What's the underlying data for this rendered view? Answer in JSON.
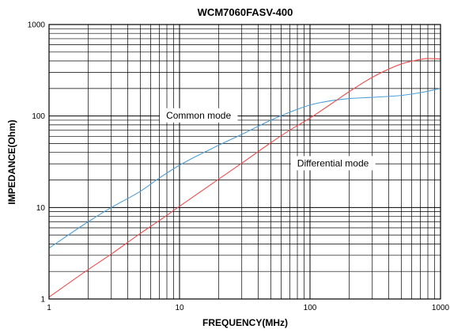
{
  "chart_data": {
    "type": "line",
    "title": "WCM7060FASV-400",
    "xlabel": "FREQUENCY(MHz)",
    "ylabel": "IMPEDANCE(Ohm)",
    "x_scale": "log",
    "y_scale": "log",
    "xlim": [
      1,
      1000
    ],
    "ylim": [
      1,
      1000
    ],
    "x_ticks": [
      1,
      10,
      100,
      1000
    ],
    "x_tick_labels": [
      "1",
      "10",
      "100",
      "1000"
    ],
    "y_ticks": [
      1,
      10,
      100,
      1000
    ],
    "y_tick_labels": [
      "1",
      "10",
      "100",
      "1000"
    ],
    "grid": true,
    "series": [
      {
        "name": "Common mode",
        "color": "#4f9fd8",
        "x": [
          1,
          2,
          3,
          5,
          7,
          10,
          20,
          30,
          50,
          70,
          100,
          150,
          200,
          300,
          500,
          700,
          1000
        ],
        "y": [
          3.6,
          7.0,
          10.0,
          15.0,
          21.0,
          29.0,
          48.0,
          63.0,
          90.0,
          110.0,
          132.0,
          148.0,
          155.0,
          160.0,
          168.0,
          180.0,
          200.0
        ]
      },
      {
        "name": "Differential mode",
        "color": "#f05050",
        "x": [
          1,
          2,
          3,
          5,
          7,
          10,
          20,
          30,
          50,
          70,
          100,
          150,
          200,
          300,
          500,
          700,
          800,
          1000
        ],
        "y": [
          1.05,
          2.1,
          3.1,
          5.2,
          7.2,
          10.3,
          20.5,
          30.5,
          51.0,
          70.0,
          95.0,
          140.0,
          185.0,
          265.0,
          370.0,
          415.0,
          425.0,
          420.0
        ]
      }
    ],
    "annotations": [
      {
        "text": "Common mode",
        "x": 14,
        "y": 100
      },
      {
        "text": "Differential mode",
        "x": 150,
        "y": 30
      }
    ]
  }
}
